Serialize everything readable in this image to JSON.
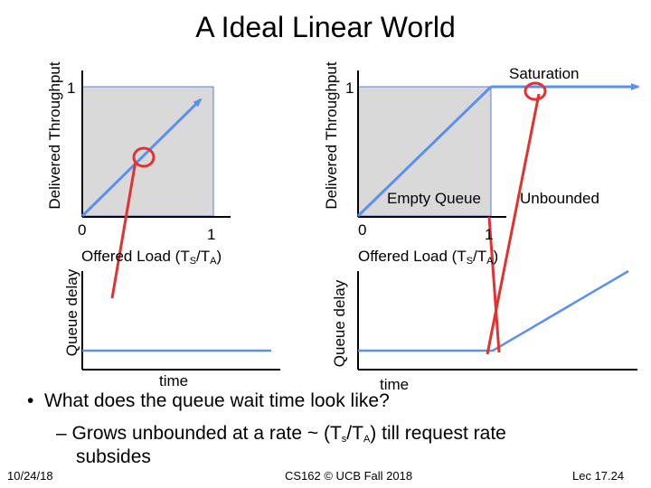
{
  "slide": {
    "title": "A Ideal Linear World",
    "left_chart": {
      "ylabel": "Delivered Throughput",
      "y_tick_1": "1",
      "x_tick_0": "0",
      "x_tick_1": "1",
      "xlabel_prefix": "Offered Load  (T",
      "xlabel_sub1": "S",
      "xlabel_mid": "/T",
      "xlabel_sub2": "A",
      "xlabel_suffix": ")"
    },
    "right_chart": {
      "ylabel": "Delivered Throughput",
      "y_tick_1": "1",
      "x_tick_0": "0",
      "x_tick_1": "1",
      "xlabel_prefix": "Offered Load  (T",
      "xlabel_sub1": "S",
      "xlabel_mid": "/T",
      "xlabel_sub2": "A",
      "xlabel_suffix": ")",
      "saturation_label": "Saturation",
      "empty_queue_label": "Empty Queue",
      "unbounded_label": "Unbounded"
    },
    "left_delay": {
      "ylabel": "Queue delay",
      "xlabel": "time"
    },
    "right_delay": {
      "ylabel": "Queue delay",
      "xlabel": "time"
    },
    "bullets": {
      "question": "What does the queue wait time look like?",
      "answer_prefix": "– Grows unbounded at a rate ~ (T",
      "answer_sub1": "s",
      "answer_mid": "/T",
      "answer_sub2": "A",
      "answer_suffix": ") till request rate",
      "answer_line2": "subsides"
    },
    "footer": {
      "date": "10/24/18",
      "course": "CS162 © UCB Fall 2018",
      "lecture": "Lec 17.24"
    },
    "colors": {
      "line_blue": "#5b8ff0",
      "highlight_red": "#e53030",
      "box_fill": "#d9d9d9",
      "box_border": "#5b7fd6"
    }
  }
}
